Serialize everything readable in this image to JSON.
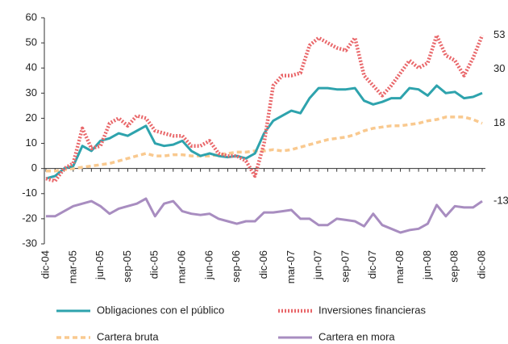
{
  "chart_data": {
    "type": "line",
    "categories": [
      "dic-04",
      null,
      null,
      "mar-05",
      null,
      null,
      "jun-05",
      null,
      null,
      "sep-05",
      null,
      null,
      "dic-05",
      null,
      null,
      "mar-06",
      null,
      null,
      "jun-06",
      null,
      null,
      "sep-06",
      null,
      null,
      "dic-06",
      null,
      null,
      "mar-07",
      null,
      null,
      "jun-07",
      null,
      null,
      "sep-07",
      null,
      null,
      "dic-07",
      null,
      null,
      "mar-08",
      null,
      null,
      "jun-08",
      null,
      null,
      "sep-08",
      null,
      null,
      "dic-08"
    ],
    "series": [
      {
        "name": "Obligaciones con el público",
        "color": "#2ea3ad",
        "style": "solid",
        "values": [
          -4,
          -3,
          0,
          1,
          9,
          7,
          11,
          12,
          14,
          13,
          15,
          17,
          10,
          9,
          9.5,
          11,
          7,
          5,
          6,
          5,
          4.5,
          5,
          4,
          6,
          14,
          19,
          21,
          23,
          22,
          28,
          32,
          32,
          31.5,
          31.5,
          32,
          27,
          25.5,
          26.5,
          28,
          28,
          32,
          31.5,
          29,
          33,
          30,
          30.5,
          28,
          28.5,
          30
        ]
      },
      {
        "name": "Inversiones financieras",
        "color": "#e9686b",
        "style": "dotted",
        "values": [
          -4,
          -5,
          0,
          2,
          16,
          8,
          9,
          18,
          20,
          17,
          21,
          20,
          15,
          14,
          13,
          13,
          9,
          9,
          11,
          6,
          5,
          5,
          3,
          -3,
          10,
          33,
          37,
          37,
          38,
          49,
          52,
          50,
          48,
          47,
          52,
          37,
          33,
          29,
          33,
          38,
          43,
          40,
          42,
          53,
          45,
          43,
          37,
          44,
          53
        ]
      },
      {
        "name": "Cartera bruta",
        "color": "#f9c98f",
        "style": "dashed",
        "values": [
          -1,
          -1,
          -0.5,
          0,
          0.5,
          1,
          1.5,
          2,
          3,
          4,
          5,
          6,
          5,
          5,
          5.5,
          5.5,
          5,
          5,
          5,
          5.5,
          6,
          6.5,
          6.5,
          7,
          7,
          7.5,
          7,
          7.5,
          8.5,
          9.5,
          10.5,
          11.5,
          12,
          12.5,
          13.5,
          15,
          16,
          16.5,
          17,
          17,
          17.5,
          18,
          19,
          19.5,
          20.5,
          20.5,
          20.5,
          19.5,
          18
        ]
      },
      {
        "name": "Cartera en mora",
        "color": "#a88dc0",
        "style": "solid",
        "values": [
          -19,
          -19,
          -17,
          -15,
          -14,
          -13,
          -15,
          -18,
          -16,
          -15,
          -14,
          -12,
          -19,
          -14,
          -13,
          -17,
          -18,
          -18.5,
          -18,
          -20,
          -21,
          -22,
          -21,
          -21,
          -17.5,
          -17.5,
          -17,
          -16.5,
          -20,
          -20,
          -22.5,
          -22.5,
          -20,
          -20.5,
          -21,
          -23,
          -18,
          -22.5,
          -24,
          -25.5,
          -24.5,
          -24,
          -22,
          -14.5,
          -19,
          -15,
          -15.5,
          -15.5,
          -13
        ]
      }
    ],
    "ylim": [
      -30,
      60
    ],
    "yticks": [
      -30,
      -20,
      -10,
      0,
      10,
      20,
      30,
      40,
      50,
      60
    ],
    "end_labels": true
  }
}
